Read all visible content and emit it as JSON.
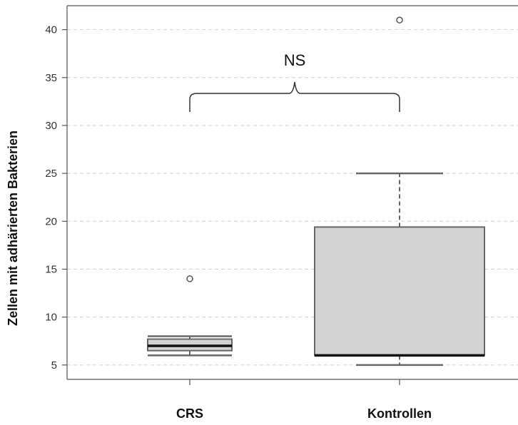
{
  "chart_data": {
    "type": "boxplot",
    "ylabel": "Zellen mit adhärierten Bakterien",
    "xlabel": "",
    "ylim": [
      3.5,
      42.5
    ],
    "yticks": [
      5,
      10,
      15,
      20,
      25,
      30,
      35,
      40
    ],
    "grid": "horizontal-dashed",
    "categories": [
      "CRS",
      "Kontrollen"
    ],
    "boxes": [
      {
        "category": "CRS",
        "whisker_low": 6,
        "q1": 6.5,
        "median": 7,
        "q3": 7.7,
        "whisker_high": 8,
        "outliers": [
          14
        ]
      },
      {
        "category": "Kontrollen",
        "whisker_low": 5,
        "q1": 6,
        "median": 6,
        "q3": 19.4,
        "whisker_high": 25,
        "outliers": [
          41
        ]
      }
    ],
    "annotation": {
      "text": "NS"
    },
    "colors": {
      "box_fill": "#d3d3d3",
      "grid": "#d0d0d0",
      "axis": "#555555"
    }
  }
}
